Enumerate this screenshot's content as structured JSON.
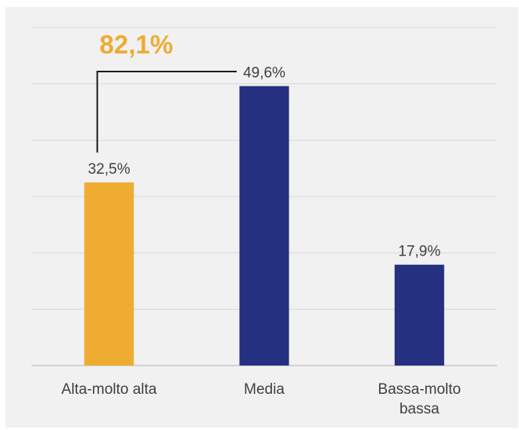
{
  "colors": {
    "highlight": "#EEAC33",
    "primary": "#253081",
    "label": "#404040",
    "background": "#f1f1f1",
    "grid": "#d9d9d9"
  },
  "chart_data": {
    "type": "bar",
    "categories": [
      [
        "Alta-molto alta"
      ],
      [
        "Media"
      ],
      [
        "Bassa-molto",
        "bassa"
      ]
    ],
    "values": [
      32.5,
      49.6,
      17.9
    ],
    "value_labels": [
      "32,5%",
      "49,6%",
      "17,9%"
    ],
    "bar_colors": [
      "#EEAC33",
      "#253081",
      "#253081"
    ],
    "ylim": [
      0,
      60
    ],
    "y_gridlines": [
      10,
      20,
      30,
      40,
      50,
      60
    ],
    "grid": true,
    "legend": "none",
    "title": "",
    "xlabel": "",
    "ylabel": "",
    "callout": {
      "text": "82,1%",
      "color": "#EEAC33",
      "spans_categories": [
        0,
        1
      ]
    }
  }
}
